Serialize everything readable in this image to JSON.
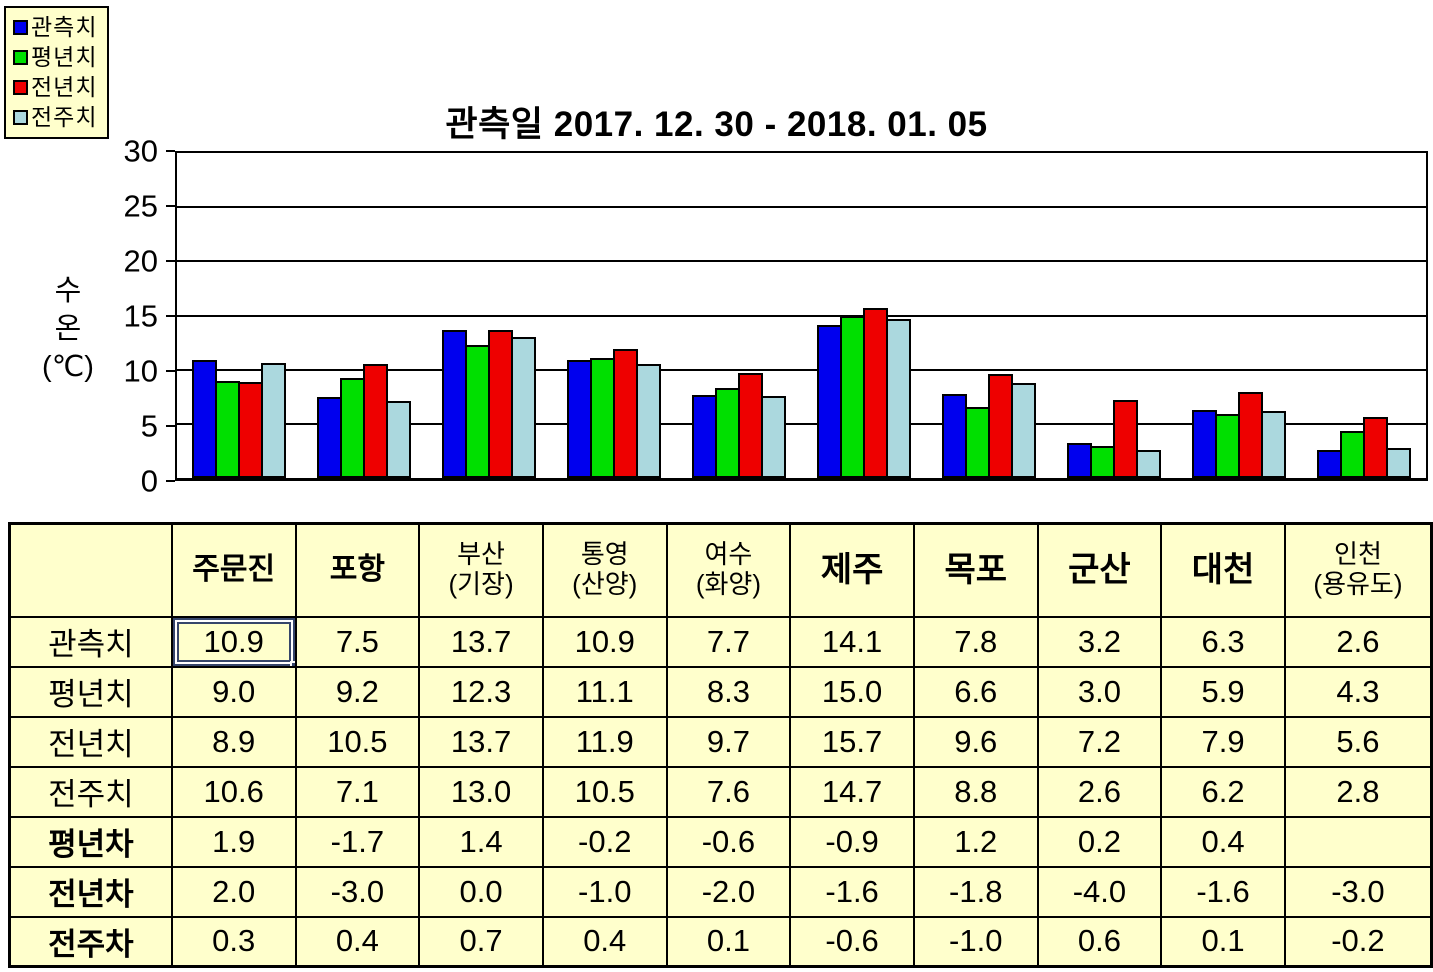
{
  "chart": {
    "title": "관측일 2017. 12. 30 - 2018. 01. 05",
    "y_axis_title": "수\n온\n(℃)"
  },
  "chart_data": {
    "type": "bar",
    "title": "관측일 2017. 12. 30 - 2018. 01. 05",
    "ylabel": "수온(℃)",
    "xlabel": "",
    "ylim": [
      0,
      30
    ],
    "yticks": [
      0,
      5,
      10,
      15,
      20,
      25,
      30
    ],
    "grid": true,
    "legend_position": "top-left",
    "categories": [
      "주문진",
      "포항",
      "부산(기장)",
      "통영(산양)",
      "여수(화양)",
      "제주",
      "목포",
      "군산",
      "대천",
      "인천(용유도)"
    ],
    "series": [
      {
        "name": "관측치",
        "color": "#0000EE",
        "values": [
          10.9,
          7.5,
          13.7,
          10.9,
          7.7,
          14.1,
          7.8,
          3.2,
          6.3,
          2.6
        ]
      },
      {
        "name": "평년치",
        "color": "#00DF00",
        "values": [
          9.0,
          9.2,
          12.3,
          11.1,
          8.3,
          15.0,
          6.6,
          3.0,
          5.9,
          4.3
        ]
      },
      {
        "name": "전년치",
        "color": "#EE0000",
        "values": [
          8.9,
          10.5,
          13.7,
          11.9,
          9.7,
          15.7,
          9.6,
          7.2,
          7.9,
          5.6
        ]
      },
      {
        "name": "전주치",
        "color": "#ABD8DE",
        "values": [
          10.6,
          7.1,
          13.0,
          10.5,
          7.6,
          14.7,
          8.8,
          2.6,
          6.2,
          2.8
        ]
      }
    ]
  },
  "table": {
    "corner_label": "",
    "columns": [
      {
        "label": "주문진",
        "sub": "",
        "em": false
      },
      {
        "label": "포항",
        "sub": "",
        "em": false
      },
      {
        "label": "부산",
        "sub": "(기장)",
        "em": false
      },
      {
        "label": "통영",
        "sub": "(산양)",
        "em": false
      },
      {
        "label": "여수",
        "sub": "(화양)",
        "em": false
      },
      {
        "label": "제주",
        "sub": "",
        "em": true
      },
      {
        "label": "목포",
        "sub": "",
        "em": true
      },
      {
        "label": "군산",
        "sub": "",
        "em": true
      },
      {
        "label": "대천",
        "sub": "",
        "em": true
      },
      {
        "label": "인천",
        "sub": "(용유도)",
        "em": false
      }
    ],
    "rows": [
      {
        "label": "관측치",
        "bold": false,
        "values": [
          "10.9",
          "7.5",
          "13.7",
          "10.9",
          "7.7",
          "14.1",
          "7.8",
          "3.2",
          "6.3",
          "2.6"
        ]
      },
      {
        "label": "평년치",
        "bold": false,
        "values": [
          "9.0",
          "9.2",
          "12.3",
          "11.1",
          "8.3",
          "15.0",
          "6.6",
          "3.0",
          "5.9",
          "4.3"
        ]
      },
      {
        "label": "전년치",
        "bold": false,
        "values": [
          "8.9",
          "10.5",
          "13.7",
          "11.9",
          "9.7",
          "15.7",
          "9.6",
          "7.2",
          "7.9",
          "5.6"
        ]
      },
      {
        "label": "전주치",
        "bold": false,
        "values": [
          "10.6",
          "7.1",
          "13.0",
          "10.5",
          "7.6",
          "14.7",
          "8.8",
          "2.6",
          "6.2",
          "2.8"
        ]
      },
      {
        "label": "평년차",
        "bold": true,
        "values": [
          "1.9",
          "-1.7",
          "1.4",
          "-0.2",
          "-0.6",
          "-0.9",
          "1.2",
          "0.2",
          "0.4",
          ""
        ]
      },
      {
        "label": "전년차",
        "bold": true,
        "values": [
          "2.0",
          "-3.0",
          "0.0",
          "-1.0",
          "-2.0",
          "-1.6",
          "-1.8",
          "-4.0",
          "-1.6",
          "-3.0"
        ]
      },
      {
        "label": "전주차",
        "bold": true,
        "values": [
          "0.3",
          "0.4",
          "0.7",
          "0.4",
          "0.1",
          "-0.6",
          "-1.0",
          "0.6",
          "0.1",
          "-0.2"
        ]
      }
    ],
    "selected_cell": {
      "row": 0,
      "col": 0,
      "value": "10.9"
    }
  }
}
